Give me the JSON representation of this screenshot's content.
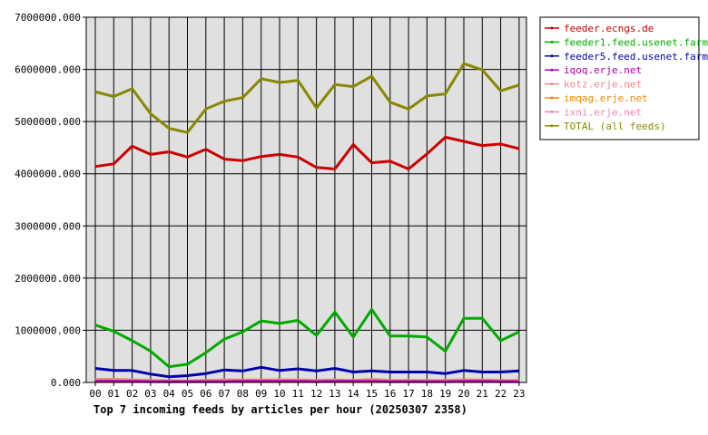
{
  "chart_data": {
    "type": "line",
    "title": "Top 7 incoming feeds by articles per hour (20250307 2358)",
    "xlabel": "",
    "ylabel": "",
    "ylim": [
      0,
      7000000
    ],
    "yticks": [
      0,
      1000000,
      2000000,
      3000000,
      4000000,
      5000000,
      6000000,
      7000000
    ],
    "ytick_labels": [
      "0.000",
      "1000000.000",
      "2000000.000",
      "3000000.000",
      "4000000.000",
      "5000000.000",
      "6000000.000",
      "7000000.000"
    ],
    "categories": [
      "00",
      "01",
      "02",
      "03",
      "04",
      "05",
      "06",
      "07",
      "08",
      "09",
      "10",
      "11",
      "12",
      "13",
      "14",
      "15",
      "16",
      "17",
      "18",
      "19",
      "20",
      "21",
      "22",
      "23"
    ],
    "grid": true,
    "legend_position": "right",
    "series": [
      {
        "name": "feeder.ecngs.de",
        "color": "#cc0000",
        "values": [
          4140000,
          4190000,
          4530000,
          4370000,
          4420000,
          4320000,
          4470000,
          4280000,
          4250000,
          4330000,
          4370000,
          4320000,
          4120000,
          4090000,
          4560000,
          4210000,
          4240000,
          4090000,
          4380000,
          4700000,
          4620000,
          4540000,
          4570000,
          4480000
        ]
      },
      {
        "name": "feeder1.feed.usenet.farm",
        "color": "#00aa00",
        "values": [
          1100000,
          980000,
          800000,
          600000,
          300000,
          350000,
          570000,
          830000,
          970000,
          1180000,
          1130000,
          1190000,
          900000,
          1350000,
          870000,
          1400000,
          890000,
          890000,
          870000,
          600000,
          1230000,
          1230000,
          800000,
          970000
        ]
      },
      {
        "name": "feeder5.feed.usenet.farm",
        "color": "#0000aa",
        "values": [
          270000,
          230000,
          230000,
          160000,
          110000,
          130000,
          170000,
          240000,
          220000,
          290000,
          230000,
          260000,
          220000,
          270000,
          200000,
          220000,
          200000,
          200000,
          200000,
          170000,
          230000,
          200000,
          200000,
          220000
        ]
      },
      {
        "name": "iqoq.erje.net",
        "color": "#aa00aa",
        "values": [
          20000,
          20000,
          20000,
          15000,
          15000,
          15000,
          15000,
          15000,
          20000,
          20000,
          20000,
          20000,
          15000,
          20000,
          20000,
          20000,
          15000,
          15000,
          15000,
          15000,
          20000,
          20000,
          15000,
          15000
        ]
      },
      {
        "name": "kotz.erje.net",
        "color": "#ee8888",
        "values": [
          60000,
          60000,
          50000,
          40000,
          30000,
          30000,
          40000,
          50000,
          50000,
          50000,
          50000,
          50000,
          40000,
          50000,
          40000,
          60000,
          40000,
          40000,
          40000,
          40000,
          50000,
          50000,
          40000,
          40000
        ]
      },
      {
        "name": "imqag.erje.net",
        "color": "#ee8800",
        "values": [
          30000,
          30000,
          25000,
          20000,
          15000,
          15000,
          20000,
          25000,
          25000,
          25000,
          25000,
          25000,
          20000,
          25000,
          20000,
          30000,
          20000,
          20000,
          20000,
          20000,
          25000,
          25000,
          20000,
          20000
        ]
      },
      {
        "name": "ixni.erje.net",
        "color": "#ee88aa",
        "values": [
          45000,
          45000,
          40000,
          30000,
          25000,
          25000,
          30000,
          40000,
          40000,
          40000,
          40000,
          40000,
          30000,
          40000,
          30000,
          45000,
          30000,
          30000,
          30000,
          30000,
          40000,
          40000,
          30000,
          30000
        ]
      },
      {
        "name": "TOTAL (all feeds)",
        "color": "#888800",
        "values": [
          5570000,
          5480000,
          5630000,
          5150000,
          4870000,
          4790000,
          5240000,
          5390000,
          5460000,
          5820000,
          5750000,
          5790000,
          5260000,
          5710000,
          5670000,
          5870000,
          5370000,
          5240000,
          5490000,
          5530000,
          6110000,
          5990000,
          5590000,
          5700000
        ]
      }
    ]
  }
}
